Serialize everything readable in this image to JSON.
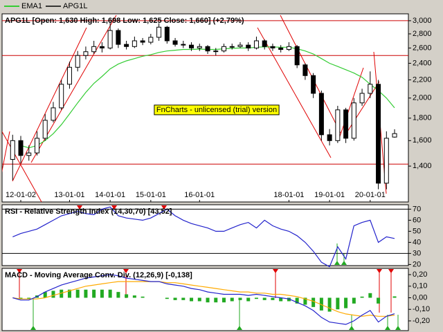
{
  "chart_data": [
    {
      "type": "candlestick",
      "title": "APG1L [Open: 1,630  High: 1,698  Low: 1,625  Close: 1,660] (+2,79%)",
      "annotation": "FnCharts - unlicensed (trial) version",
      "log": true,
      "xlim": [
        -1.3,
        48.7
      ],
      "xticks": [
        {
          "value": 1,
          "label": "12-01-02"
        },
        {
          "value": 7,
          "label": "13-01-01"
        },
        {
          "value": 12,
          "label": "14-01-01"
        },
        {
          "value": 17,
          "label": "15-01-01"
        },
        {
          "value": 23,
          "label": "16-01-01"
        },
        {
          "value": 34,
          "label": "18-01-01"
        },
        {
          "value": 39,
          "label": "19-01-01"
        },
        {
          "value": 44,
          "label": "20-01-01"
        }
      ],
      "ylim": [
        1160,
        3110
      ],
      "yticks": [
        {
          "value": 1400,
          "label": "1,400"
        },
        {
          "value": 1600,
          "label": "1,600"
        },
        {
          "value": 1800,
          "label": "1,800"
        },
        {
          "value": 2000,
          "label": "2,000"
        },
        {
          "value": 2200,
          "label": "2,200"
        },
        {
          "value": 2400,
          "label": "2,400"
        },
        {
          "value": 2600,
          "label": "2,600"
        },
        {
          "value": 2800,
          "label": "2,800"
        },
        {
          "value": 3000,
          "label": "3,000"
        }
      ],
      "hlines": [
        3000,
        2500,
        1415
      ],
      "hline_color": "#cc0000",
      "candles": {
        "name": "APG1L",
        "color": "#000000",
        "open": [
          1450,
          1600,
          1480,
          1500,
          1620,
          1780,
          1900,
          2150,
          2350,
          2500,
          2550,
          2620,
          2600,
          2850,
          2650,
          2620,
          2700,
          2680,
          2750,
          2900,
          2700,
          2650,
          2640,
          2600,
          2620,
          2560,
          2560,
          2620,
          2620,
          2640,
          2600,
          2700,
          2620,
          2600,
          2580,
          2620,
          2380,
          2250,
          2050,
          1650,
          1600,
          1880,
          1620,
          1950,
          2050,
          2150,
          1280,
          1630
        ],
        "high": [
          1650,
          1640,
          1560,
          1680,
          1840,
          1960,
          2200,
          2420,
          2560,
          2620,
          2700,
          2680,
          2980,
          2880,
          2700,
          2760,
          2740,
          2800,
          2960,
          2920,
          2740,
          2700,
          2680,
          2660,
          2640,
          2600,
          2660,
          2660,
          2680,
          2680,
          2760,
          2720,
          2660,
          2640,
          2680,
          2640,
          2400,
          2280,
          2080,
          1700,
          1920,
          1900,
          2000,
          2100,
          2300,
          2200,
          1680,
          1698
        ],
        "low": [
          1300,
          1420,
          1440,
          1480,
          1600,
          1760,
          1880,
          2100,
          2300,
          2450,
          2520,
          2540,
          2580,
          2600,
          2580,
          2600,
          2640,
          2650,
          2700,
          2660,
          2620,
          2600,
          2560,
          2560,
          2520,
          2500,
          2540,
          2580,
          2600,
          2560,
          2580,
          2580,
          2560,
          2540,
          2560,
          2340,
          2200,
          2000,
          1600,
          1560,
          1580,
          1580,
          1600,
          1920,
          2000,
          1240,
          1240,
          1625
        ],
        "close": [
          1600,
          1480,
          1500,
          1620,
          1780,
          1900,
          2150,
          2350,
          2500,
          2550,
          2620,
          2600,
          2850,
          2650,
          2620,
          2700,
          2680,
          2750,
          2900,
          2700,
          2650,
          2640,
          2600,
          2620,
          2560,
          2560,
          2620,
          2620,
          2640,
          2600,
          2700,
          2620,
          2600,
          2580,
          2620,
          2380,
          2250,
          2050,
          1650,
          1600,
          1880,
          1620,
          1950,
          2050,
          2150,
          1280,
          1620,
          1660
        ]
      },
      "series": [
        {
          "name": "EMA1",
          "color": "#33cc33",
          "values": [
            null,
            1560,
            1540,
            1560,
            1600,
            1660,
            1740,
            1840,
            1950,
            2060,
            2160,
            2240,
            2330,
            2390,
            2430,
            2460,
            2490,
            2510,
            2540,
            2560,
            2570,
            2580,
            2580,
            2585,
            2580,
            2580,
            2590,
            2595,
            2600,
            2600,
            2610,
            2615,
            2615,
            2610,
            2610,
            2590,
            2560,
            2520,
            2460,
            2400,
            2360,
            2320,
            2280,
            2230,
            2150,
            2080,
            2000,
            1900
          ]
        }
      ]
    },
    {
      "type": "line",
      "title": "RSI - Relative Strength Index (14,30,70) [43,52]",
      "xlim": [
        -1.3,
        48.7
      ],
      "ylim": [
        19,
        74
      ],
      "yticks": [
        20,
        30,
        40,
        50,
        60,
        70
      ],
      "hlines": [
        70,
        30
      ],
      "hline_color": "#000000",
      "series": [
        {
          "color": "#2222cc",
          "values": [
            45,
            48,
            50,
            52,
            56,
            60,
            64,
            66,
            68,
            66,
            65,
            70,
            72,
            64,
            62,
            61,
            60,
            62,
            66,
            70,
            64,
            60,
            57,
            55,
            53,
            50,
            50,
            53,
            56,
            58,
            53,
            60,
            55,
            52,
            50,
            46,
            40,
            32,
            22,
            18,
            36,
            25,
            55,
            58,
            60,
            40,
            45,
            43.52
          ]
        }
      ]
    },
    {
      "type": "combo",
      "title": "MACD - Moving Average Conv. Div. (12,26,9) [-0,138]",
      "xlim": [
        -1.3,
        48.7
      ],
      "ylim": [
        -0.284,
        0.254
      ],
      "yticks": [
        {
          "value": -0.2,
          "label": "-0,20"
        },
        {
          "value": -0.1,
          "label": "-0,10"
        },
        {
          "value": 0,
          "label": "0,00"
        },
        {
          "value": 0.1,
          "label": "0,10"
        },
        {
          "value": 0.2,
          "label": "0,20"
        }
      ],
      "series": [
        {
          "kind": "bar",
          "color": "#22aa22",
          "values": [
            0,
            -0.01,
            -0.01,
            0.02,
            0.05,
            0.06,
            0.07,
            0.07,
            0.07,
            0.07,
            0.07,
            0.07,
            0.07,
            0.05,
            0.03,
            0.02,
            0.01,
            0,
            0,
            -0.01,
            -0.02,
            -0.02,
            -0.03,
            -0.03,
            -0.04,
            -0.04,
            -0.04,
            -0.03,
            -0.02,
            -0.03,
            -0.01,
            -0.02,
            -0.02,
            -0.03,
            -0.03,
            -0.05,
            -0.06,
            -0.08,
            -0.11,
            -0.12,
            -0.1,
            -0.09,
            -0.05,
            0.01,
            0.04,
            -0.05,
            0,
            0.012
          ]
        },
        {
          "kind": "line",
          "color": "#ffaa00",
          "values": [
            0,
            -0.01,
            -0.01,
            -0.01,
            0,
            0.02,
            0.04,
            0.06,
            0.08,
            0.1,
            0.11,
            0.12,
            0.13,
            0.14,
            0.14,
            0.14,
            0.14,
            0.14,
            0.14,
            0.13,
            0.13,
            0.12,
            0.11,
            0.1,
            0.09,
            0.08,
            0.07,
            0.06,
            0.05,
            0.05,
            0.04,
            0.04,
            0.03,
            0.03,
            0.02,
            0.01,
            -0.01,
            -0.03,
            -0.06,
            -0.09,
            -0.12,
            -0.14,
            -0.15,
            -0.16,
            -0.15,
            -0.16,
            -0.16,
            -0.15
          ]
        },
        {
          "kind": "line",
          "color": "#2222cc",
          "values": [
            0,
            -0.02,
            -0.02,
            0.01,
            0.05,
            0.08,
            0.11,
            0.13,
            0.15,
            0.17,
            0.18,
            0.19,
            0.2,
            0.19,
            0.17,
            0.16,
            0.15,
            0.14,
            0.14,
            0.12,
            0.11,
            0.1,
            0.08,
            0.07,
            0.05,
            0.04,
            0.03,
            0.03,
            0.03,
            0.02,
            0.03,
            0.02,
            0.01,
            0,
            -0.01,
            -0.04,
            -0.07,
            -0.11,
            -0.17,
            -0.21,
            -0.22,
            -0.23,
            -0.2,
            -0.15,
            -0.11,
            -0.21,
            -0.16,
            -0.138
          ]
        }
      ]
    }
  ]
}
